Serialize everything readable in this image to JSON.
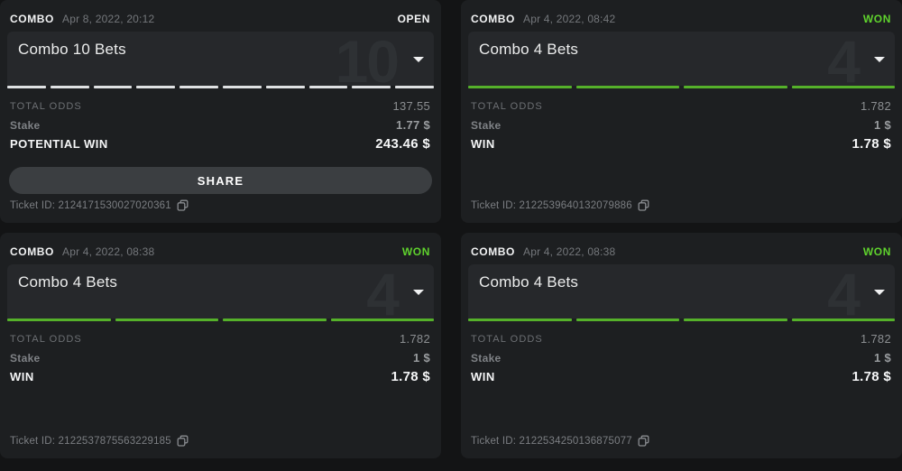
{
  "colors": {
    "status_open": "#f2f3f4",
    "status_won": "#5fd22d",
    "segment_open": "#dfe1e3",
    "segment_won": "#55b12a"
  },
  "cards": [
    {
      "type_label": "COMBO",
      "date": "Apr 8, 2022, 20:12",
      "status": "OPEN",
      "status_kind": "open",
      "title": "Combo 10 Bets",
      "watermark": "10",
      "legs": 10,
      "rows": [
        {
          "label": "TOTAL ODDS",
          "value": "137.55"
        },
        {
          "label": "Stake",
          "value": "1.77 $"
        },
        {
          "label": "POTENTIAL WIN",
          "value": "243.46 $"
        }
      ],
      "share_label": "SHARE",
      "ticket_prefix": "Ticket ID:",
      "ticket_id": "2124171530027020361"
    },
    {
      "type_label": "COMBO",
      "date": "Apr 4, 2022, 08:42",
      "status": "WON",
      "status_kind": "won",
      "title": "Combo 4 Bets",
      "watermark": "4",
      "legs": 4,
      "rows": [
        {
          "label": "TOTAL ODDS",
          "value": "1.782"
        },
        {
          "label": "Stake",
          "value": "1 $"
        },
        {
          "label": "WIN",
          "value": "1.78 $"
        }
      ],
      "ticket_prefix": "Ticket ID:",
      "ticket_id": "2122539640132079886"
    },
    {
      "type_label": "COMBO",
      "date": "Apr 4, 2022, 08:38",
      "status": "WON",
      "status_kind": "won",
      "title": "Combo 4 Bets",
      "watermark": "4",
      "legs": 4,
      "rows": [
        {
          "label": "TOTAL ODDS",
          "value": "1.782"
        },
        {
          "label": "Stake",
          "value": "1 $"
        },
        {
          "label": "WIN",
          "value": "1.78 $"
        }
      ],
      "ticket_prefix": "Ticket ID:",
      "ticket_id": "2122537875563229185"
    },
    {
      "type_label": "COMBO",
      "date": "Apr 4, 2022, 08:38",
      "status": "WON",
      "status_kind": "won",
      "title": "Combo 4 Bets",
      "watermark": "4",
      "legs": 4,
      "rows": [
        {
          "label": "TOTAL ODDS",
          "value": "1.782"
        },
        {
          "label": "Stake",
          "value": "1 $"
        },
        {
          "label": "WIN",
          "value": "1.78 $"
        }
      ],
      "ticket_prefix": "Ticket ID:",
      "ticket_id": "2122534250136875077"
    }
  ]
}
